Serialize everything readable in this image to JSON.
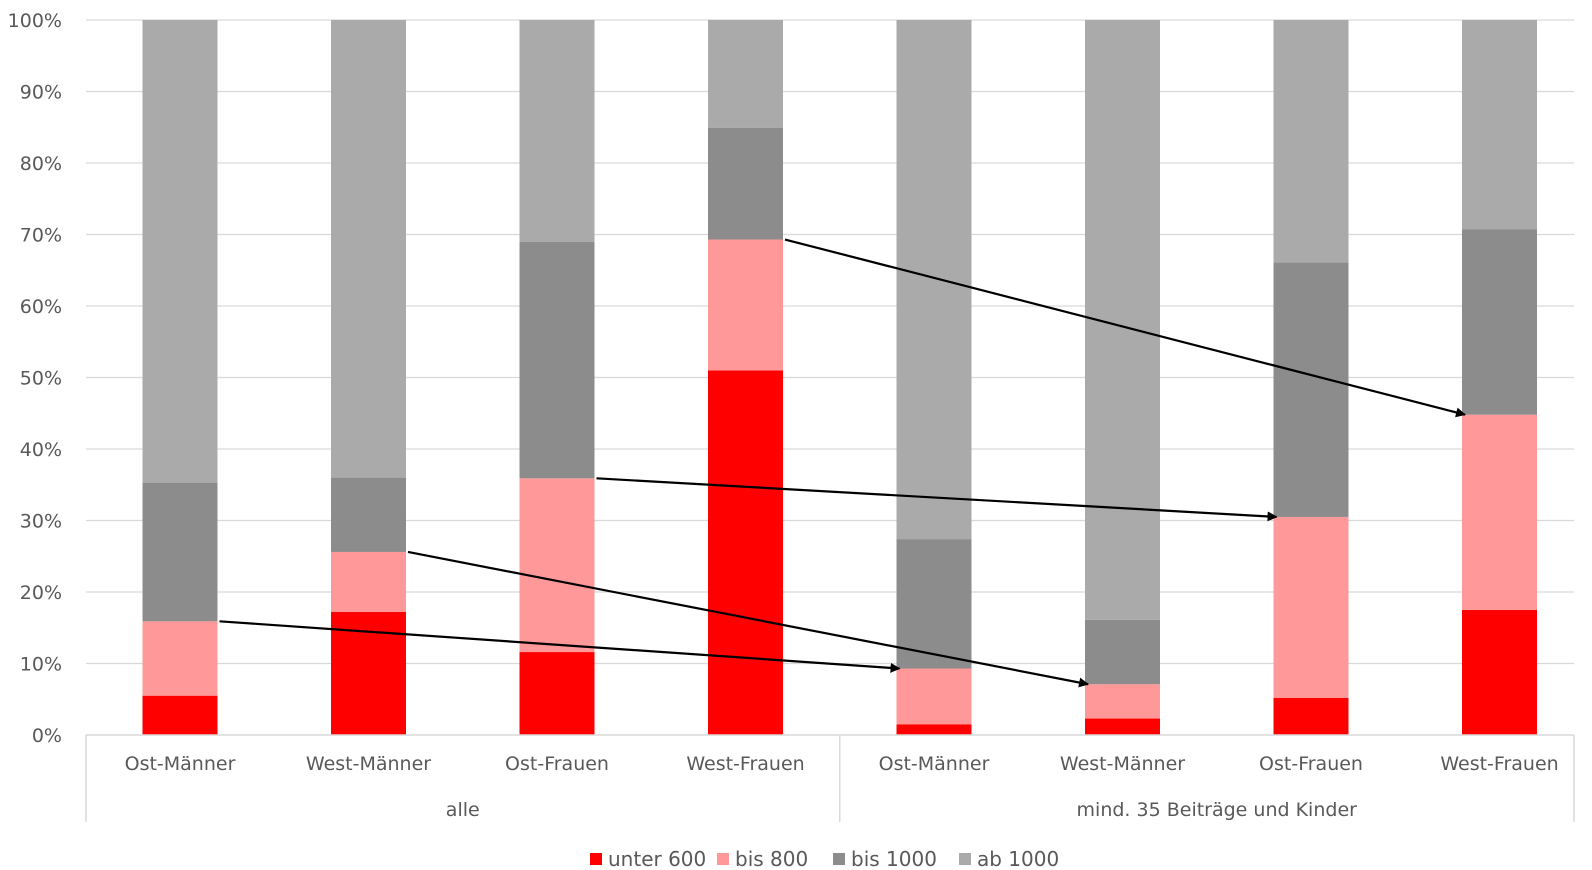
{
  "chart_data": {
    "type": "bar",
    "stacked": true,
    "percent": true,
    "ylim": [
      0,
      100
    ],
    "yticks": [
      "0%",
      "10%",
      "20%",
      "30%",
      "40%",
      "50%",
      "60%",
      "70%",
      "80%",
      "90%",
      "100%"
    ],
    "grid": true,
    "groups": [
      {
        "label": "alle",
        "categories": [
          "Ost-Männer",
          "West-Männer",
          "Ost-Frauen",
          "West-Frauen"
        ]
      },
      {
        "label": "mind. 35 Beiträge und Kinder",
        "categories": [
          "Ost-Männer",
          "West-Männer",
          "Ost-Frauen",
          "West-Frauen"
        ]
      }
    ],
    "series": [
      {
        "name": "unter 600",
        "color": "#ff0000",
        "values": [
          5.5,
          17.2,
          11.6,
          51.0,
          1.5,
          2.3,
          5.2,
          17.5
        ]
      },
      {
        "name": "bis 800",
        "color": "#ff9999",
        "values": [
          10.4,
          8.4,
          24.3,
          18.3,
          7.8,
          4.8,
          25.3,
          27.3
        ]
      },
      {
        "name": "bis 1000",
        "color": "#8c8c8c",
        "values": [
          19.4,
          10.4,
          33.1,
          15.6,
          18.1,
          9.0,
          35.6,
          25.9
        ]
      },
      {
        "name": "ab 1000",
        "color": "#aaaaaa",
        "values": [
          64.7,
          64.0,
          31.0,
          15.1,
          72.6,
          83.9,
          33.9,
          29.3
        ]
      }
    ],
    "arrows": [
      {
        "from_category": 0,
        "to_category": 4,
        "from_value": 15.9,
        "to_value": 9.3
      },
      {
        "from_category": 1,
        "to_category": 5,
        "from_value": 25.6,
        "to_value": 7.1
      },
      {
        "from_category": 2,
        "to_category": 6,
        "from_value": 35.9,
        "to_value": 30.5
      },
      {
        "from_category": 3,
        "to_category": 7,
        "from_value": 69.3,
        "to_value": 44.8
      }
    ],
    "legend_position": "bottom"
  }
}
